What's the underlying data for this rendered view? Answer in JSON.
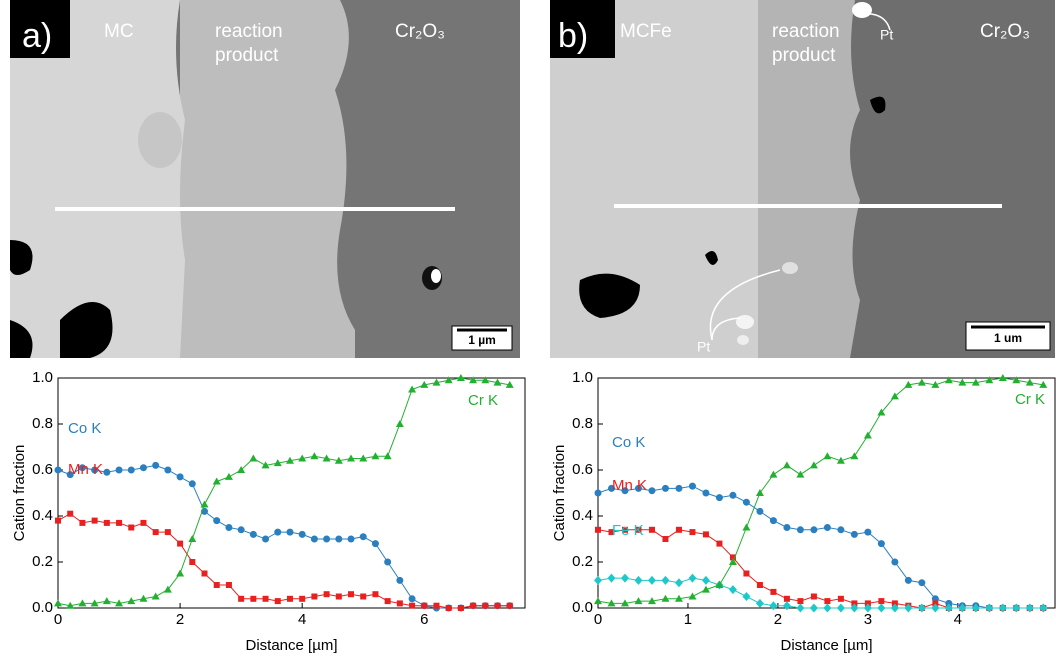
{
  "panels": [
    {
      "label": "a)",
      "regions": [
        "MC",
        "reaction product",
        "Cr₂O₃"
      ],
      "scale_bar": "1 µm"
    },
    {
      "label": "b)",
      "regions": [
        "MCFe",
        "reaction product",
        "Cr₂O₃"
      ],
      "scale_bar": "1 um",
      "annotations": [
        "Pt",
        "Pt"
      ]
    }
  ],
  "chart_data": [
    {
      "type": "line",
      "xlabel": "Distance [µm]",
      "ylabel": "Cation fraction",
      "xlim": [
        0,
        7.65
      ],
      "xticks": [
        0,
        2,
        4,
        6
      ],
      "ylim": [
        0,
        1.0
      ],
      "yticks": [
        {
          "value": 0,
          "label": "0.0"
        },
        0.2,
        0.4,
        0.6,
        0.8,
        {
          "value": 1,
          "label": "1.0"
        }
      ],
      "x": [
        0,
        0.2,
        0.4,
        0.6,
        0.8,
        1,
        1.2,
        1.4,
        1.6,
        1.8,
        2,
        2.2,
        2.4,
        2.6,
        2.8,
        3,
        3.2,
        3.4,
        3.6,
        3.8,
        4,
        4.2,
        4.4,
        4.6,
        4.8,
        5,
        5.2,
        5.4,
        5.6,
        5.8,
        6,
        6.2,
        6.4,
        6.6,
        6.8,
        7,
        7.2,
        7.4
      ],
      "series": [
        {
          "name": "Co K",
          "color": "#2a7fc0",
          "marker": "circle",
          "values": [
            0.6,
            0.58,
            0.61,
            0.6,
            0.59,
            0.6,
            0.6,
            0.61,
            0.62,
            0.6,
            0.57,
            0.54,
            0.42,
            0.38,
            0.35,
            0.34,
            0.32,
            0.3,
            0.33,
            0.33,
            0.32,
            0.3,
            0.3,
            0.3,
            0.3,
            0.31,
            0.28,
            0.2,
            0.12,
            0.04,
            0.01,
            0,
            0,
            0,
            0.01,
            0.01,
            0.01,
            0.01
          ]
        },
        {
          "name": "Mn K",
          "color": "#e8201f",
          "marker": "square",
          "values": [
            0.38,
            0.41,
            0.37,
            0.38,
            0.37,
            0.37,
            0.35,
            0.37,
            0.33,
            0.33,
            0.28,
            0.2,
            0.15,
            0.1,
            0.1,
            0.04,
            0.04,
            0.04,
            0.03,
            0.04,
            0.04,
            0.05,
            0.06,
            0.05,
            0.06,
            0.05,
            0.06,
            0.03,
            0.02,
            0.01,
            0.01,
            0.01,
            0,
            0,
            0.01,
            0.01,
            0.01,
            0.01
          ]
        },
        {
          "name": "Cr K",
          "color": "#22b030",
          "marker": "triangle",
          "values": [
            0.02,
            0.01,
            0.02,
            0.02,
            0.03,
            0.02,
            0.03,
            0.04,
            0.05,
            0.08,
            0.15,
            0.3,
            0.45,
            0.55,
            0.57,
            0.6,
            0.65,
            0.62,
            0.63,
            0.64,
            0.65,
            0.66,
            0.65,
            0.64,
            0.65,
            0.65,
            0.66,
            0.66,
            0.8,
            0.95,
            0.97,
            0.98,
            0.99,
            1.0,
            0.99,
            0.99,
            0.98,
            0.97
          ]
        }
      ]
    },
    {
      "type": "line",
      "xlabel": "Distance [µm]",
      "ylabel": "Cation fraction",
      "xlim": [
        0,
        5.08
      ],
      "xticks": [
        0,
        1,
        2,
        3,
        4
      ],
      "ylim": [
        0,
        1.0
      ],
      "yticks": [
        {
          "value": 0,
          "label": "0.0"
        },
        0.2,
        0.4,
        0.6,
        0.8,
        {
          "value": 1,
          "label": "1.0"
        }
      ],
      "x": [
        0,
        0.15,
        0.3,
        0.45,
        0.6,
        0.75,
        0.9,
        1.05,
        1.2,
        1.35,
        1.5,
        1.65,
        1.8,
        1.95,
        2.1,
        2.25,
        2.4,
        2.55,
        2.7,
        2.85,
        3,
        3.15,
        3.3,
        3.45,
        3.6,
        3.75,
        3.9,
        4.05,
        4.2,
        4.35,
        4.5,
        4.65,
        4.8,
        4.95
      ],
      "series": [
        {
          "name": "Co K",
          "color": "#2a7fc0",
          "marker": "circle",
          "values": [
            0.5,
            0.52,
            0.51,
            0.52,
            0.51,
            0.52,
            0.52,
            0.53,
            0.5,
            0.48,
            0.49,
            0.46,
            0.42,
            0.38,
            0.35,
            0.34,
            0.34,
            0.35,
            0.34,
            0.32,
            0.33,
            0.28,
            0.2,
            0.12,
            0.11,
            0.04,
            0.02,
            0.01,
            0.01,
            0,
            0,
            0,
            0,
            0
          ]
        },
        {
          "name": "Mn K",
          "color": "#e8201f",
          "marker": "square",
          "values": [
            0.34,
            0.33,
            0.34,
            0.34,
            0.34,
            0.3,
            0.34,
            0.33,
            0.32,
            0.28,
            0.22,
            0.15,
            0.1,
            0.07,
            0.04,
            0.03,
            0.05,
            0.03,
            0.04,
            0.02,
            0.02,
            0.03,
            0.02,
            0.01,
            0,
            0.02,
            0,
            0,
            0,
            0,
            0,
            0,
            0,
            0
          ]
        },
        {
          "name": "Fe K",
          "color": "#1fc8c8",
          "marker": "diamond",
          "values": [
            0.12,
            0.13,
            0.13,
            0.12,
            0.12,
            0.12,
            0.11,
            0.13,
            0.12,
            0.1,
            0.08,
            0.05,
            0.02,
            0.01,
            0.01,
            0,
            0,
            0,
            0,
            0,
            0,
            0,
            0,
            0,
            0,
            0,
            0,
            0,
            0,
            0,
            0,
            0,
            0,
            0
          ]
        },
        {
          "name": "Cr K",
          "color": "#22b030",
          "marker": "triangle",
          "values": [
            0.03,
            0.02,
            0.02,
            0.03,
            0.03,
            0.04,
            0.04,
            0.05,
            0.08,
            0.1,
            0.2,
            0.35,
            0.5,
            0.58,
            0.62,
            0.58,
            0.62,
            0.66,
            0.64,
            0.66,
            0.75,
            0.85,
            0.92,
            0.97,
            0.98,
            0.97,
            0.99,
            0.98,
            0.98,
            0.99,
            1.0,
            0.99,
            0.98,
            0.97
          ]
        }
      ]
    }
  ]
}
